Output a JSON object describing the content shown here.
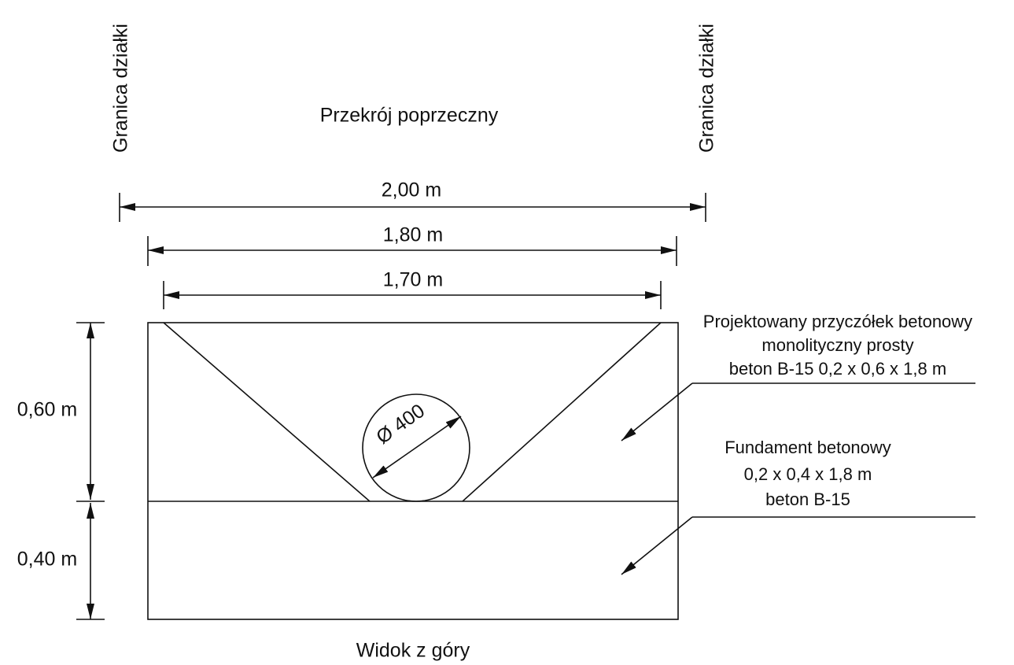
{
  "boundary_left": "Granica działki",
  "boundary_right": "Granica działki",
  "title": "Przekrój poprzeczny",
  "dimensions": {
    "total_width": "2,00 m",
    "outer_width": "1,80 m",
    "inner_width": "1,70 m",
    "upper_height": "0,60 m",
    "lower_height": "0,40 m",
    "pipe_diameter": "Ø 400"
  },
  "labels": {
    "abutment": [
      "Projektowany przyczółek betonowy",
      "monolityczny prosty",
      "beton B-15 0,2 x 0,6 x 1,8 m"
    ],
    "foundation": [
      "Fundament betonowy",
      "0,2 x 0,4 x 1,8 m",
      "beton B-15"
    ]
  },
  "footer": "Widok z góry"
}
